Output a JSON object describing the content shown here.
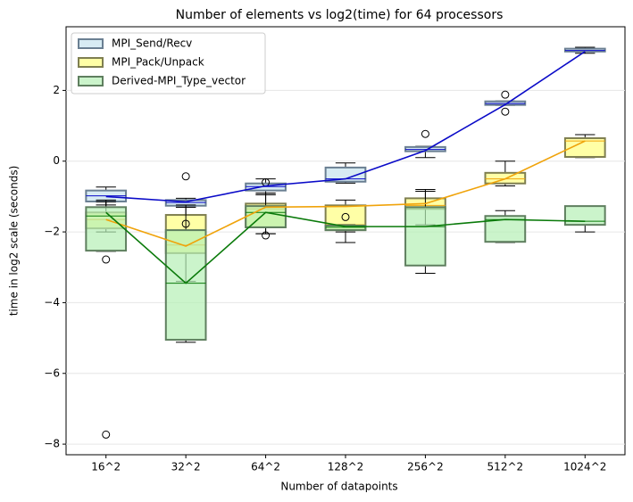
{
  "chart_data": {
    "type": "box",
    "title": "Number of elements vs log2(time) for 64 processors",
    "x_label": "Number of datapoints",
    "y_label": "time in log2 scale (seconds)",
    "categories": [
      "16^2",
      "32^2",
      "64^2",
      "128^2",
      "256^2",
      "512^2",
      "1024^2"
    ],
    "ylim": [
      -8.3,
      3.8
    ],
    "yticks": [
      {
        "value": -8,
        "label": "−8"
      },
      {
        "value": -6,
        "label": "−6"
      },
      {
        "value": -4,
        "label": "−4"
      },
      {
        "value": -2,
        "label": "−2"
      },
      0,
      2
    ],
    "grid": true,
    "legend": "upper left",
    "series": [
      {
        "name": "MPI_Send/Recv",
        "color": "#c6e3ee",
        "edge_color": "#6a7f92",
        "line_color": "#0a0ac8",
        "whisker_low": [
          -1.24,
          -1.3,
          -0.95,
          -0.62,
          0.1,
          1.58,
          3.05
        ],
        "q1": [
          -1.14,
          -1.26,
          -0.83,
          -0.58,
          0.28,
          1.59,
          3.1
        ],
        "median": [
          -0.98,
          -1.17,
          -0.72,
          -0.5,
          0.33,
          1.63,
          3.13
        ],
        "q3": [
          -0.83,
          -1.1,
          -0.63,
          -0.18,
          0.4,
          1.69,
          3.18
        ],
        "whisker_high": [
          -0.73,
          -1.05,
          -0.5,
          -0.05,
          0.42,
          1.7,
          3.22
        ],
        "outliers": [
          [],
          [
            -0.43
          ],
          [
            -0.6
          ],
          [],
          [
            0.77
          ],
          [
            1.88,
            1.4
          ],
          []
        ],
        "mean": [
          -1.0,
          -1.15,
          -0.7,
          -0.5,
          0.3,
          1.6,
          3.1
        ]
      },
      {
        "name": "MPI_Pack/Unpack",
        "color": "#ffff80",
        "edge_color": "#7f7f50",
        "line_color": "#f0a30a",
        "whisker_low": [
          -2.0,
          -3.4,
          -2.05,
          -2.3,
          -1.8,
          -0.7,
          0.1
        ],
        "q1": [
          -1.9,
          -2.6,
          -1.87,
          -1.95,
          -1.35,
          -0.63,
          0.12
        ],
        "median": [
          -1.65,
          -2.37,
          -1.35,
          -1.8,
          -1.25,
          -0.5,
          0.57
        ],
        "q3": [
          -1.45,
          -1.52,
          -1.2,
          -1.25,
          -1.05,
          -0.33,
          0.65
        ],
        "whisker_high": [
          -1.1,
          -1.3,
          -0.9,
          -1.1,
          -0.8,
          0.0,
          0.75
        ],
        "outliers": [
          [],
          [
            -1.77
          ],
          [],
          [
            -1.58
          ],
          [],
          [],
          []
        ],
        "mean": [
          -1.65,
          -2.4,
          -1.3,
          -1.28,
          -1.2,
          -0.5,
          0.57
        ]
      },
      {
        "name": "Derived-MPI_Type_vector",
        "color": "#b5f0b5",
        "edge_color": "#5f7f5f",
        "line_color": "#0a7a0a",
        "whisker_low": [
          -2.55,
          -5.12,
          -2.05,
          -2.0,
          -3.17,
          -2.3,
          -2.0
        ],
        "q1": [
          -2.53,
          -5.05,
          -1.87,
          -1.95,
          -2.95,
          -2.28,
          -1.8
        ],
        "median": [
          -1.55,
          -3.45,
          -1.45,
          -1.87,
          -1.85,
          -1.65,
          -1.7
        ],
        "q3": [
          -1.3,
          -1.95,
          -1.27,
          -1.82,
          -1.3,
          -1.55,
          -1.27
        ],
        "whisker_high": [
          -1.15,
          -1.24,
          -0.95,
          -1.8,
          -0.85,
          -1.4,
          -1.28
        ],
        "outliers": [
          [
            -2.78,
            -7.73
          ],
          [],
          [
            -2.1
          ],
          [],
          [],
          [],
          []
        ],
        "mean": [
          -1.45,
          -3.45,
          -1.45,
          -1.85,
          -1.85,
          -1.65,
          -1.7
        ]
      }
    ]
  }
}
